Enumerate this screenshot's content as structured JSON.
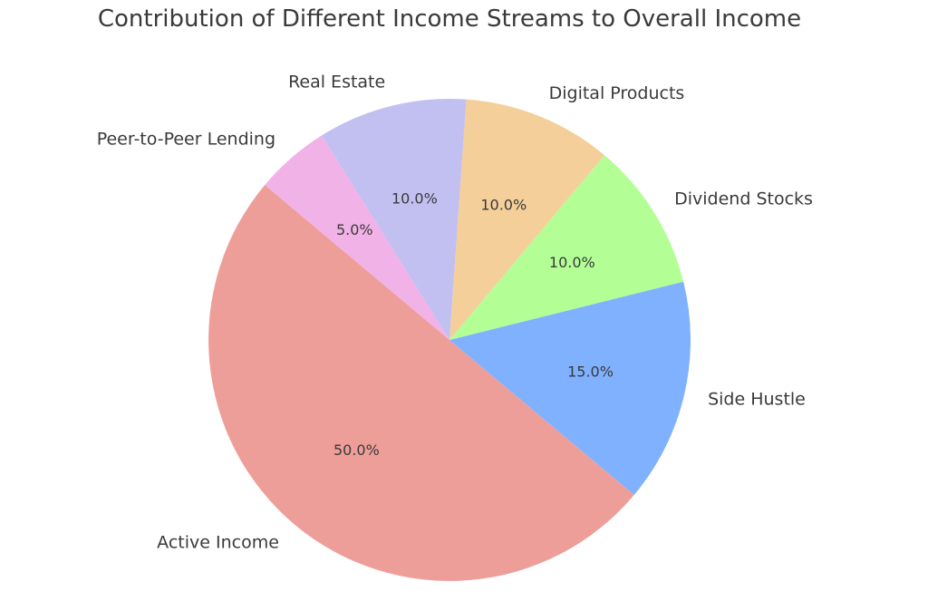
{
  "chart_data": {
    "type": "pie",
    "title": "Contribution of Different Income Streams to Overall Income",
    "start_angle_deg": 140,
    "direction": "counterclockwise",
    "slices": [
      {
        "label": "Active Income",
        "value": 50.0,
        "pct_label": "50.0%",
        "color": "#ee9e99"
      },
      {
        "label": "Side Hustle",
        "value": 15.0,
        "pct_label": "15.0%",
        "color": "#80b1ff"
      },
      {
        "label": "Dividend Stocks",
        "value": 10.0,
        "pct_label": "10.0%",
        "color": "#b3ff95"
      },
      {
        "label": "Digital Products",
        "value": 10.0,
        "pct_label": "10.0%",
        "color": "#f4cf9a"
      },
      {
        "label": "Real Estate",
        "value": 10.0,
        "pct_label": "10.0%",
        "color": "#c1c0f1"
      },
      {
        "label": "Peer-to-Peer Lending",
        "value": 5.0,
        "pct_label": "5.0%",
        "color": "#f1b2e7"
      }
    ]
  }
}
